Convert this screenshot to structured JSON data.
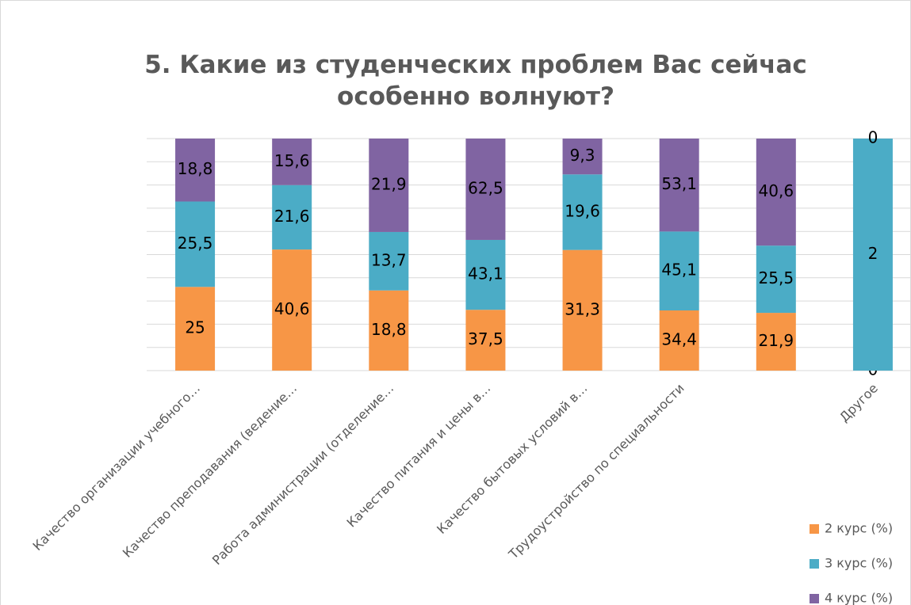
{
  "chart_data": {
    "type": "bar",
    "stacked": "percent",
    "title": "5. Какие из студенческих проблем Вас сейчас особенно волнуют?",
    "categories": [
      "Качество организации учебного…",
      "Качество преподавания (ведение…",
      "Работа администрации (отделение…",
      "Качество питания и цены в…",
      "Качество бытовых условий в…",
      "Трудоустройство по специальности",
      null,
      "Другое"
    ],
    "series": [
      {
        "name": "2 курс (%)",
        "color": "#f79646",
        "values": [
          25,
          40.6,
          18.8,
          37.5,
          31.3,
          34.4,
          21.9,
          0
        ],
        "value_labels": [
          "25",
          "40,6",
          "18,8",
          "37,5",
          "31,3",
          "34,4",
          "21,9",
          "0"
        ]
      },
      {
        "name": "3 курс (%)",
        "color": "#4bacc6",
        "values": [
          25.5,
          21.6,
          13.7,
          43.1,
          19.6,
          45.1,
          25.5,
          2
        ],
        "value_labels": [
          "25,5",
          "21,6",
          "13,7",
          "43,1",
          "19,6",
          "45,1",
          "25,5",
          "2"
        ]
      },
      {
        "name": "4 курс (%)",
        "color": "#8064a2",
        "values": [
          18.8,
          15.6,
          21.9,
          62.5,
          9.3,
          53.1,
          40.6,
          0
        ],
        "value_labels": [
          "18,8",
          "15,6",
          "21,9",
          "62,5",
          "9,3",
          "53,1",
          "40,6",
          "0"
        ]
      }
    ],
    "ylim": [
      0,
      100
    ],
    "yticks": [
      0,
      10,
      20,
      30,
      40,
      50,
      60,
      70,
      80,
      90,
      100
    ],
    "ytick_labels": false,
    "grid": true,
    "legend": "bottom-right"
  }
}
